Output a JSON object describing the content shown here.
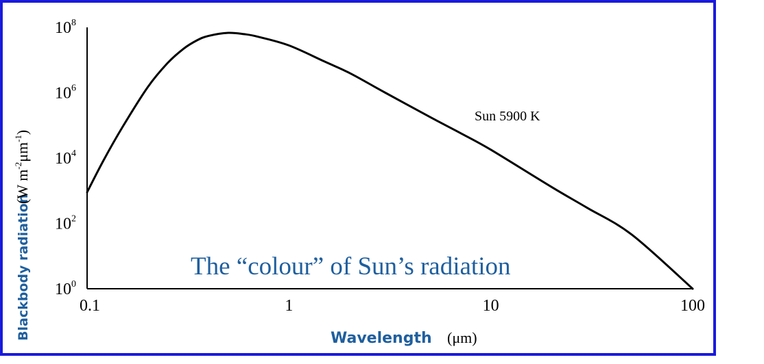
{
  "colors": {
    "frame": "#1a1adc",
    "axis_label": "#1f5f9e",
    "caption": "#1f5f9e",
    "curve": "#000000"
  },
  "chart_data": {
    "type": "line",
    "x_scale": "log",
    "y_scale": "log",
    "xlim": [
      0.1,
      100
    ],
    "ylim": [
      1,
      100000000
    ],
    "x_ticks": [
      {
        "value": 0.1,
        "label": "0.1"
      },
      {
        "value": 1,
        "label": "1"
      },
      {
        "value": 10,
        "label": "10"
      },
      {
        "value": 100,
        "label": "100"
      }
    ],
    "y_ticks": [
      {
        "value": 1,
        "base": "10",
        "exp": "0"
      },
      {
        "value": 100,
        "base": "10",
        "exp": "2"
      },
      {
        "value": 10000,
        "base": "10",
        "exp": "4"
      },
      {
        "value": 1000000,
        "base": "10",
        "exp": "6"
      },
      {
        "value": 100000000,
        "base": "10",
        "exp": "8"
      }
    ],
    "xlabel": "Wavelength",
    "xlabel_unit": "(μm)",
    "ylabel": "Blackbody radiation",
    "ylabel_unit": {
      "open": "(W m",
      "sup1": "-2",
      "mid": "μm",
      "sup2": "-1",
      "close": ")"
    },
    "caption": "The “colour” of Sun’s radiation",
    "series": [
      {
        "name": "Sun 5900 K",
        "x": [
          0.1,
          0.12,
          0.15,
          0.2,
          0.25,
          0.3,
          0.35,
          0.4,
          0.5,
          0.6,
          0.7,
          1,
          1.5,
          2,
          3,
          5,
          7,
          10,
          20,
          30,
          50,
          100
        ],
        "y": [
          900,
          8000,
          90000,
          1500000,
          8000000,
          22000000,
          40000000,
          55000000,
          68000000,
          62000000,
          52000000,
          28000000,
          9000000,
          4000000,
          1000000,
          180000,
          60000,
          18000,
          1300,
          300,
          45,
          1
        ]
      }
    ]
  }
}
